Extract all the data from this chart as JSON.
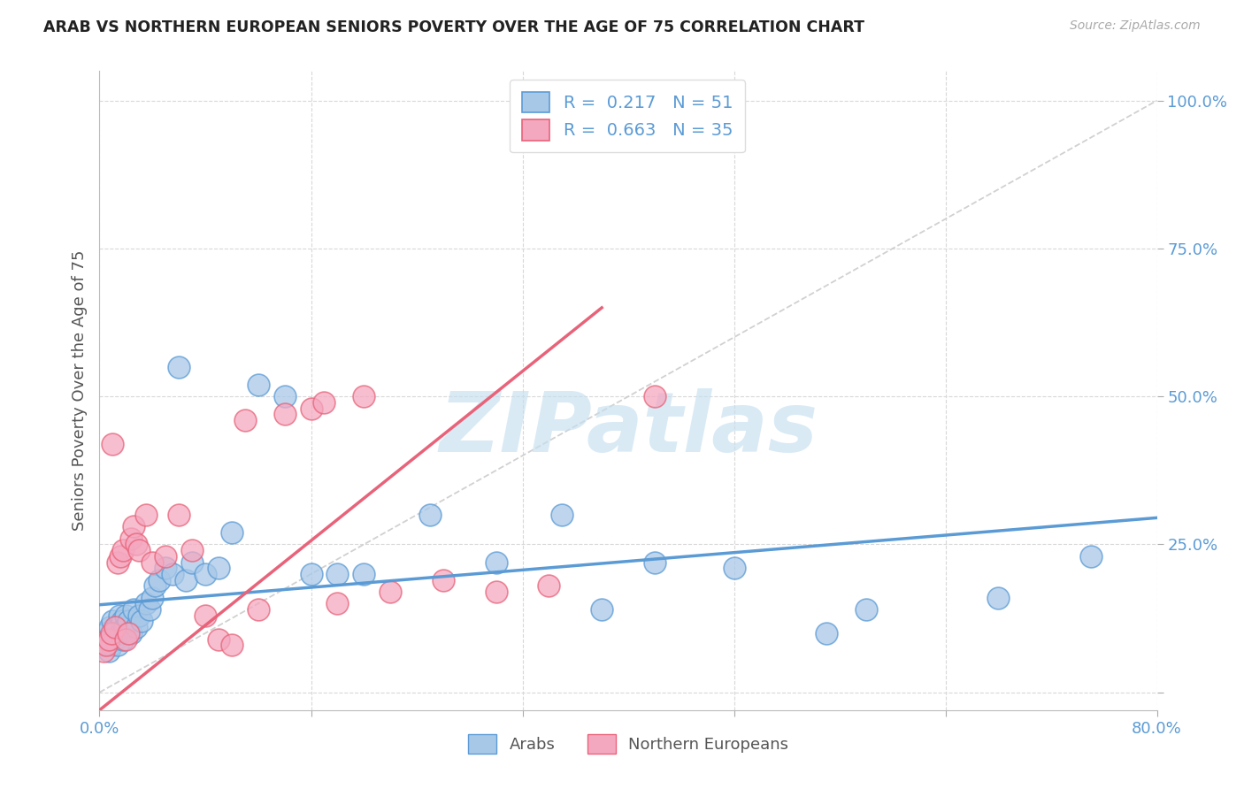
{
  "title": "ARAB VS NORTHERN EUROPEAN SENIORS POVERTY OVER THE AGE OF 75 CORRELATION CHART",
  "source": "Source: ZipAtlas.com",
  "ylabel": "Seniors Poverty Over the Age of 75",
  "xlim": [
    0.0,
    0.8
  ],
  "ylim": [
    -0.03,
    1.05
  ],
  "xticks": [
    0.0,
    0.16,
    0.32,
    0.48,
    0.64,
    0.8
  ],
  "yticks": [
    0.0,
    0.25,
    0.5,
    0.75,
    1.0
  ],
  "R_arab": 0.217,
  "N_arab": 51,
  "R_north": 0.663,
  "N_north": 35,
  "color_arab": "#a8c8e8",
  "color_north": "#f4a8c0",
  "edge_arab": "#5b9bd5",
  "edge_north": "#e8637a",
  "trend_arab_color": "#5b9bd5",
  "trend_north_color": "#e8637a",
  "trend_diag_color": "#cccccc",
  "bg": "#ffffff",
  "grid_color": "#d8d8d8",
  "title_color": "#222222",
  "tick_color": "#5b9bd5",
  "axis_label_color": "#555555",
  "source_color": "#aaaaaa",
  "legend_arab": "Arabs",
  "legend_north": "Northern Europeans",
  "watermark_color": "#c5dff0",
  "arab_x": [
    0.003,
    0.005,
    0.006,
    0.007,
    0.008,
    0.009,
    0.01,
    0.011,
    0.012,
    0.013,
    0.014,
    0.015,
    0.016,
    0.017,
    0.018,
    0.019,
    0.02,
    0.022,
    0.024,
    0.026,
    0.028,
    0.03,
    0.032,
    0.035,
    0.038,
    0.04,
    0.042,
    0.045,
    0.05,
    0.055,
    0.06,
    0.065,
    0.07,
    0.08,
    0.09,
    0.1,
    0.12,
    0.14,
    0.16,
    0.18,
    0.2,
    0.25,
    0.3,
    0.35,
    0.38,
    0.42,
    0.48,
    0.55,
    0.58,
    0.68,
    0.75
  ],
  "arab_y": [
    0.08,
    0.1,
    0.09,
    0.07,
    0.11,
    0.08,
    0.12,
    0.1,
    0.09,
    0.11,
    0.08,
    0.13,
    0.1,
    0.12,
    0.09,
    0.11,
    0.13,
    0.12,
    0.1,
    0.14,
    0.11,
    0.13,
    0.12,
    0.15,
    0.14,
    0.16,
    0.18,
    0.19,
    0.21,
    0.2,
    0.55,
    0.19,
    0.22,
    0.2,
    0.21,
    0.27,
    0.52,
    0.5,
    0.2,
    0.2,
    0.2,
    0.3,
    0.22,
    0.3,
    0.14,
    0.22,
    0.21,
    0.1,
    0.14,
    0.16,
    0.23
  ],
  "north_x": [
    0.003,
    0.005,
    0.007,
    0.009,
    0.01,
    0.012,
    0.014,
    0.016,
    0.018,
    0.02,
    0.022,
    0.024,
    0.026,
    0.028,
    0.03,
    0.035,
    0.04,
    0.05,
    0.06,
    0.07,
    0.08,
    0.09,
    0.1,
    0.11,
    0.12,
    0.14,
    0.16,
    0.17,
    0.18,
    0.2,
    0.22,
    0.26,
    0.3,
    0.34,
    0.42
  ],
  "north_y": [
    0.07,
    0.08,
    0.09,
    0.1,
    0.42,
    0.11,
    0.22,
    0.23,
    0.24,
    0.09,
    0.1,
    0.26,
    0.28,
    0.25,
    0.24,
    0.3,
    0.22,
    0.23,
    0.3,
    0.24,
    0.13,
    0.09,
    0.08,
    0.46,
    0.14,
    0.47,
    0.48,
    0.49,
    0.15,
    0.5,
    0.17,
    0.19,
    0.17,
    0.18,
    0.5
  ],
  "arab_trend_x0": 0.0,
  "arab_trend_y0": 0.148,
  "arab_trend_x1": 0.8,
  "arab_trend_y1": 0.295,
  "north_trend_x0": 0.0,
  "north_trend_y0": -0.03,
  "north_trend_x1": 0.38,
  "north_trend_y1": 0.65
}
